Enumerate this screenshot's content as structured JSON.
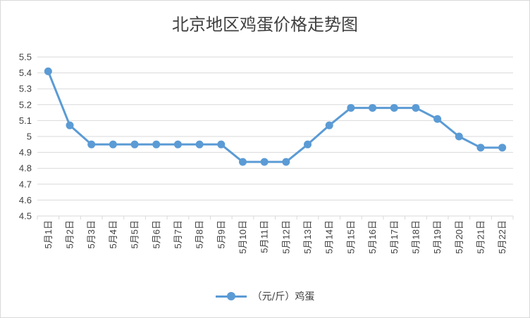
{
  "colors": {
    "series": "#5b9bd5",
    "grid": "#d9d9d9",
    "text": "#404040"
  },
  "chart_data": {
    "type": "line",
    "title": "北京地区鸡蛋价格走势图",
    "xlabel": "",
    "ylabel": "",
    "categories": [
      "5月1日",
      "5月2日",
      "5月3日",
      "5月4日",
      "5月5日",
      "5月6日",
      "5月7日",
      "5月8日",
      "5月9日",
      "5月10日",
      "5月11日",
      "5月12日",
      "5月13日",
      "5月14日",
      "5月15日",
      "5月16日",
      "5月17日",
      "5月18日",
      "5月19日",
      "5月20日",
      "5月21日",
      "5月22日"
    ],
    "series": [
      {
        "name": "（元/斤）鸡蛋",
        "values": [
          5.41,
          5.07,
          4.95,
          4.95,
          4.95,
          4.95,
          4.95,
          4.95,
          4.95,
          4.84,
          4.84,
          4.84,
          4.95,
          5.07,
          5.18,
          5.18,
          5.18,
          5.18,
          5.11,
          5.0,
          4.93,
          4.93
        ]
      }
    ],
    "ylim": [
      4.5,
      5.5
    ],
    "yticks": [
      "4.5",
      "4.6",
      "4.7",
      "4.8",
      "4.9",
      "5",
      "5.1",
      "5.2",
      "5.3",
      "5.4",
      "5.5"
    ],
    "grid": true,
    "legend": "bottom-center"
  }
}
